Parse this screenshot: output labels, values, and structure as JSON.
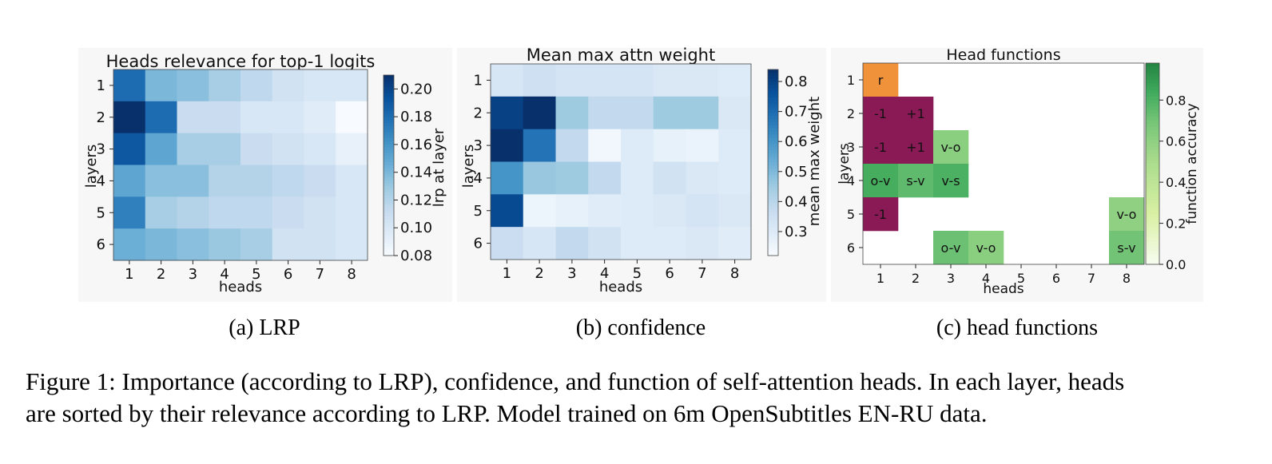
{
  "chart_data": [
    {
      "type": "heatmap",
      "title": "Heads relevance for top-1 logits",
      "xlabel": "heads",
      "ylabel": "layers",
      "x": [
        1,
        2,
        3,
        4,
        5,
        6,
        7,
        8
      ],
      "y": [
        1,
        2,
        3,
        4,
        5,
        6
      ],
      "values": [
        [
          0.18,
          0.14,
          0.135,
          0.125,
          0.115,
          0.105,
          0.1,
          0.1
        ],
        [
          0.21,
          0.18,
          0.11,
          0.11,
          0.1,
          0.1,
          0.095,
          0.08
        ],
        [
          0.19,
          0.15,
          0.125,
          0.125,
          0.11,
          0.105,
          0.1,
          0.09
        ],
        [
          0.15,
          0.135,
          0.135,
          0.12,
          0.12,
          0.115,
          0.11,
          0.1
        ],
        [
          0.17,
          0.125,
          0.12,
          0.115,
          0.115,
          0.11,
          0.105,
          0.1
        ],
        [
          0.145,
          0.14,
          0.135,
          0.13,
          0.125,
          0.105,
          0.105,
          0.1
        ]
      ],
      "colorbar": {
        "label": "lrp at layer",
        "min": 0.08,
        "max": 0.21,
        "ticks": [
          0.08,
          0.1,
          0.12,
          0.14,
          0.16,
          0.18,
          0.2
        ],
        "colormap": "Blues"
      },
      "subcaption": "(a) LRP"
    },
    {
      "type": "heatmap",
      "title": "Mean max attn weight",
      "xlabel": "heads",
      "ylabel": "layers",
      "x": [
        1,
        2,
        3,
        4,
        5,
        6,
        7,
        8
      ],
      "y": [
        1,
        2,
        3,
        4,
        5,
        6
      ],
      "values": [
        [
          0.32,
          0.35,
          0.33,
          0.33,
          0.33,
          0.31,
          0.31,
          0.3
        ],
        [
          0.8,
          0.85,
          0.45,
          0.38,
          0.38,
          0.45,
          0.45,
          0.31
        ],
        [
          0.88,
          0.68,
          0.38,
          0.24,
          0.3,
          0.27,
          0.26,
          0.3
        ],
        [
          0.6,
          0.46,
          0.45,
          0.38,
          0.3,
          0.34,
          0.31,
          0.3
        ],
        [
          0.78,
          0.25,
          0.27,
          0.29,
          0.3,
          0.31,
          0.33,
          0.31
        ],
        [
          0.36,
          0.32,
          0.38,
          0.34,
          0.3,
          0.3,
          0.31,
          0.29
        ]
      ],
      "colorbar": {
        "label": "mean max weight",
        "min": 0.22,
        "max": 0.84,
        "ticks": [
          0.3,
          0.4,
          0.5,
          0.6,
          0.7,
          0.8
        ],
        "colormap": "Blues"
      },
      "subcaption": "(b) confidence"
    },
    {
      "type": "heatmap",
      "title": "Head functions",
      "xlabel": "heads",
      "ylabel": "layers",
      "x": [
        1,
        2,
        3,
        4,
        5,
        6,
        7,
        8
      ],
      "y": [
        1,
        2,
        3,
        4,
        5,
        6
      ],
      "cells": [
        {
          "layer": 1,
          "head": 1,
          "label": "r",
          "kind": "rare",
          "accuracy": null
        },
        {
          "layer": 2,
          "head": 1,
          "label": "-1",
          "kind": "positional",
          "accuracy": null
        },
        {
          "layer": 2,
          "head": 2,
          "label": "+1",
          "kind": "positional",
          "accuracy": null
        },
        {
          "layer": 3,
          "head": 1,
          "label": "-1",
          "kind": "positional",
          "accuracy": null
        },
        {
          "layer": 3,
          "head": 2,
          "label": "+1",
          "kind": "positional",
          "accuracy": null
        },
        {
          "layer": 3,
          "head": 3,
          "label": "v-o",
          "kind": "syntactic",
          "accuracy": 0.62
        },
        {
          "layer": 4,
          "head": 1,
          "label": "o-v",
          "kind": "syntactic",
          "accuracy": 0.82
        },
        {
          "layer": 4,
          "head": 2,
          "label": "s-v",
          "kind": "syntactic",
          "accuracy": 0.75
        },
        {
          "layer": 4,
          "head": 3,
          "label": "v-s",
          "kind": "syntactic",
          "accuracy": 0.8
        },
        {
          "layer": 5,
          "head": 1,
          "label": "-1",
          "kind": "positional",
          "accuracy": null
        },
        {
          "layer": 5,
          "head": 8,
          "label": "v-o",
          "kind": "syntactic",
          "accuracy": 0.6
        },
        {
          "layer": 6,
          "head": 3,
          "label": "o-v",
          "kind": "syntactic",
          "accuracy": 0.72
        },
        {
          "layer": 6,
          "head": 4,
          "label": "v-o",
          "kind": "syntactic",
          "accuracy": 0.62
        },
        {
          "layer": 6,
          "head": 8,
          "label": "s-v",
          "kind": "syntactic",
          "accuracy": 0.7
        }
      ],
      "colors": {
        "rare": "#f0923a",
        "positional": "#8a1a56"
      },
      "colorbar": {
        "label": "function accuracy",
        "min": 0.0,
        "max": 0.98,
        "ticks": [
          0.0,
          0.2,
          0.4,
          0.6,
          0.8
        ],
        "colormap": "Greens (yellow-green)"
      },
      "subcaption": "(c) head functions"
    }
  ],
  "caption": {
    "line1": "Figure 1: Importance (according to LRP), confidence, and function of self-attention heads.  In each layer, heads",
    "line2": "are sorted by their relevance according to LRP. Model trained on 6m OpenSubtitles EN-RU data."
  }
}
